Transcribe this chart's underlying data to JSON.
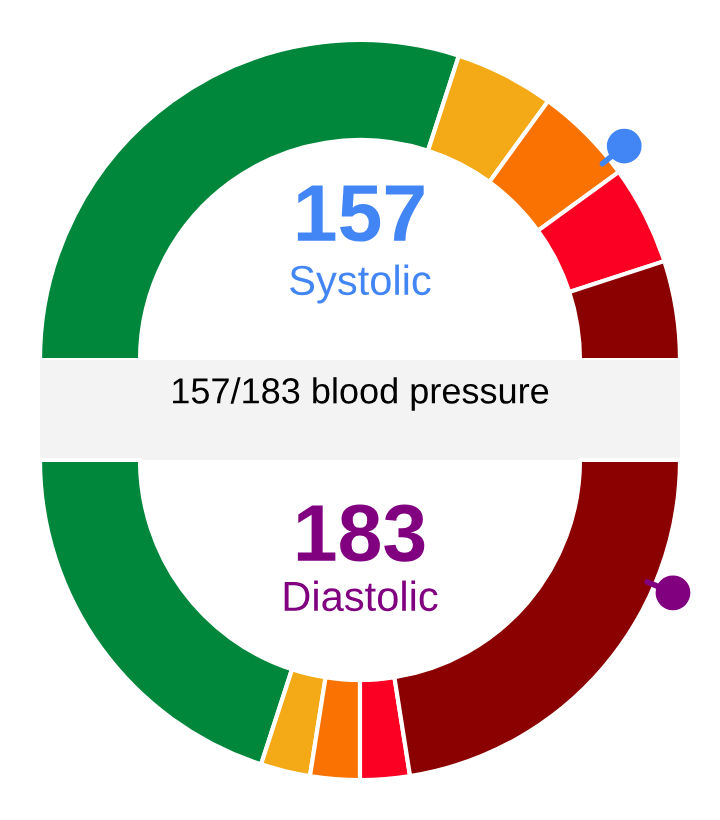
{
  "chart_data": [
    {
      "type": "donut",
      "title": "157/183 blood pressure",
      "categories": [
        null,
        null,
        null,
        null,
        null
      ],
      "values": [
        60,
        10,
        10,
        10,
        10
      ],
      "colors": [
        "#00873c",
        "#f4a916",
        "#fa7302",
        "#fb0023",
        "#8b0000"
      ],
      "annotations": [
        "157",
        "Systolic"
      ]
    },
    {
      "type": "donut",
      "categories": [
        null,
        null,
        null,
        null,
        null
      ],
      "values": [
        40,
        5,
        5,
        5,
        45
      ],
      "colors": [
        "#00873c",
        "#f4a916",
        "#fa7302",
        "#fb0023",
        "#8b0000"
      ],
      "annotations": [
        "183",
        "Diastolic"
      ]
    }
  ]
}
